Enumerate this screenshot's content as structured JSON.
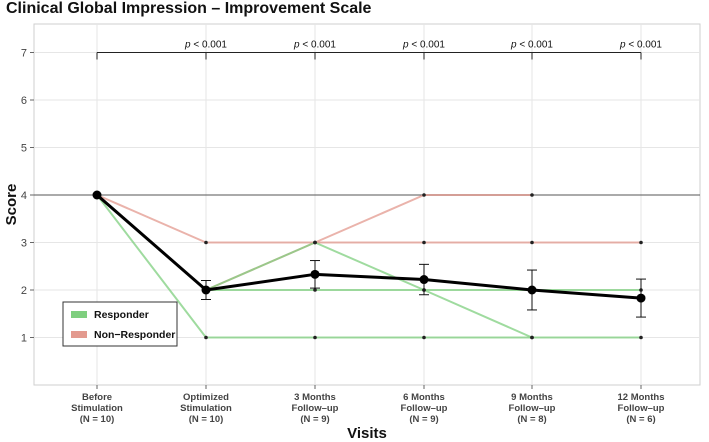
{
  "chart_data": {
    "type": "line",
    "title": "Clinical Global Impression – Improvement Scale",
    "xlabel": "Visits",
    "ylabel": "Score",
    "ylim": [
      0,
      7.6
    ],
    "yticks": [
      1,
      2,
      3,
      4,
      5,
      6,
      7
    ],
    "grid": true,
    "reference_line": 4,
    "categories": [
      {
        "lines": [
          "Before",
          "Stimulation",
          "(N = 10)"
        ]
      },
      {
        "lines": [
          "Optimized",
          "Stimulation",
          "(N = 10)"
        ]
      },
      {
        "lines": [
          "3 Months",
          "Follow–up",
          "(N = 9)"
        ]
      },
      {
        "lines": [
          "6 Months",
          "Follow–up",
          "(N = 9)"
        ]
      },
      {
        "lines": [
          "9 Months",
          "Follow–up",
          "(N = 8)"
        ]
      },
      {
        "lines": [
          "12 Months",
          "Follow–up",
          "(N = 6)"
        ]
      }
    ],
    "mean_series": {
      "name": "Mean",
      "values": [
        4.0,
        2.0,
        2.33,
        2.22,
        2.0,
        1.83
      ],
      "error": [
        0.0,
        0.2,
        0.29,
        0.32,
        0.42,
        0.4
      ],
      "color": "#000000"
    },
    "individual_series": [
      {
        "group": "Responder",
        "values": [
          4,
          1,
          1,
          1,
          1,
          1
        ],
        "color": "#7fcf7f"
      },
      {
        "group": "Responder",
        "values": [
          4,
          2,
          2,
          2,
          2,
          2
        ],
        "color": "#7fcf7f"
      },
      {
        "group": "Responder",
        "values": [
          4,
          2,
          3,
          2,
          1,
          null
        ],
        "color": "#7fcf7f"
      },
      {
        "group": "Non-Responder",
        "values": [
          4,
          3,
          3,
          3,
          3,
          3
        ],
        "color": "#e39a8f"
      },
      {
        "group": "Non-Responder",
        "values": [
          4,
          2,
          3,
          4,
          4,
          null
        ],
        "color": "#e39a8f"
      }
    ],
    "significance": {
      "bracket_level": 7,
      "from_index": 0,
      "labels": [
        {
          "index": 1,
          "text": "< 0.001"
        },
        {
          "index": 2,
          "text": "< 0.001"
        },
        {
          "index": 3,
          "text": "< 0.001"
        },
        {
          "index": 4,
          "text": "< 0.001"
        },
        {
          "index": 5,
          "text": "< 0.001"
        }
      ],
      "prefix": "p"
    },
    "legend": {
      "position": "bottom-left",
      "entries": [
        {
          "label": "Responder",
          "color": "#7fcf7f"
        },
        {
          "label": "Non−Responder",
          "color": "#e39a8f"
        }
      ]
    }
  }
}
